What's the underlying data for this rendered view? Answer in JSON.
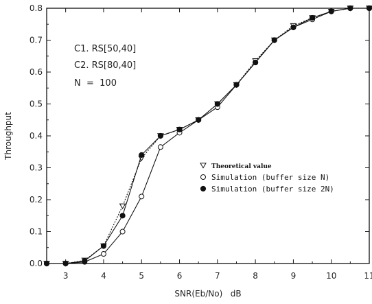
{
  "chart_data": {
    "type": "line",
    "title": "",
    "xlabel": "SNR(Eb/No)   dB",
    "ylabel": "Throughput",
    "xlim": [
      2.5,
      11
    ],
    "ylim": [
      0.0,
      0.8
    ],
    "x_ticks": [
      "3",
      "4",
      "5",
      "6",
      "7",
      "8",
      "9",
      "10",
      "11"
    ],
    "y_ticks": [
      "0.0",
      "0.1",
      "0.2",
      "0.3",
      "0.4",
      "0.5",
      "0.6",
      "0.7",
      "0.8"
    ],
    "grid": false,
    "legend_position": "center-right",
    "annotations": [
      "C1. RS[50,40]",
      "C2. RS[80,40]",
      "N  =  100"
    ],
    "series": [
      {
        "name": "Theoretical value",
        "marker": "triangle-down-open",
        "line_style": "dashed",
        "x": [
          2.5,
          3,
          3.5,
          4,
          4.5,
          5,
          5.5,
          6,
          6.5,
          7,
          7.5,
          8,
          8.5,
          9,
          9.5,
          10,
          10.5,
          11
        ],
        "y": [
          0.0,
          0.0,
          0.01,
          0.055,
          0.18,
          0.33,
          0.4,
          0.42,
          0.45,
          0.5,
          0.56,
          0.635,
          0.7,
          0.745,
          0.77,
          0.79,
          0.8,
          0.8
        ]
      },
      {
        "name": "Simulation (buffer size N)",
        "marker": "circle-open",
        "line_style": "solid",
        "x": [
          2.5,
          3,
          3.5,
          4,
          4.5,
          5,
          5.5,
          6,
          6.5,
          7,
          7.5,
          8,
          8.5,
          9,
          9.5,
          10,
          10.5,
          11
        ],
        "y": [
          0.0,
          0.0,
          0.005,
          0.03,
          0.1,
          0.21,
          0.365,
          0.41,
          0.45,
          0.49,
          0.56,
          0.63,
          0.7,
          0.74,
          0.765,
          0.79,
          0.8,
          0.8
        ]
      },
      {
        "name": "Simulation (buffer size 2N)",
        "marker": "circle-filled",
        "line_style": "solid",
        "x": [
          2.5,
          3,
          3.5,
          4,
          4.5,
          5,
          5.5,
          6,
          6.5,
          7,
          7.5,
          8,
          8.5,
          9,
          9.5,
          10,
          10.5,
          11
        ],
        "y": [
          0.0,
          0.0,
          0.008,
          0.055,
          0.15,
          0.34,
          0.4,
          0.42,
          0.45,
          0.5,
          0.56,
          0.63,
          0.7,
          0.74,
          0.77,
          0.79,
          0.8,
          0.8
        ]
      }
    ]
  },
  "colors": {
    "ink": "#111111",
    "background": "#ffffff"
  }
}
